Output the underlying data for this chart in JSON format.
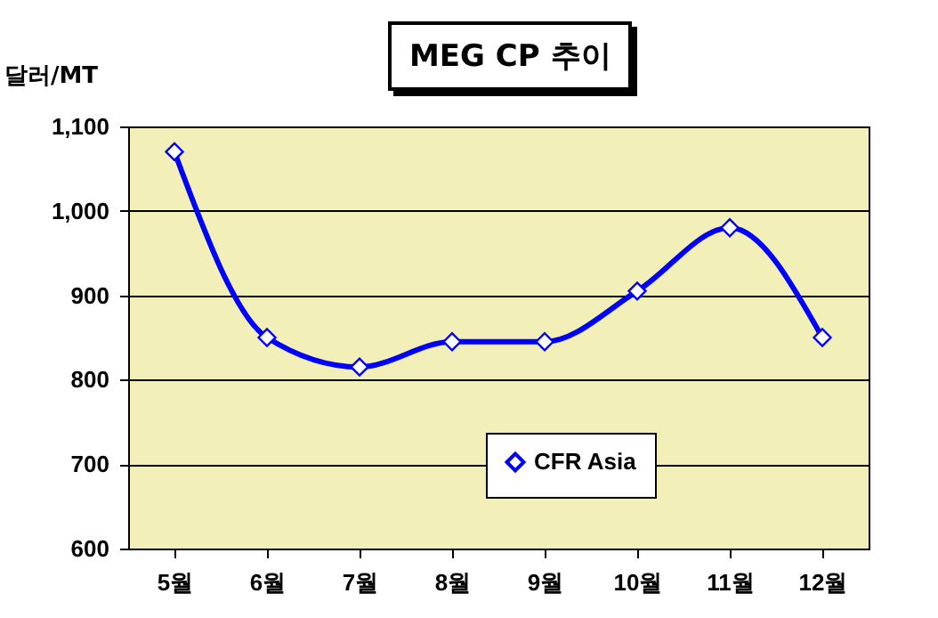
{
  "chart_data": {
    "type": "line",
    "title": "MEG CP 추이",
    "ylabel": "달러/MT",
    "categories": [
      "5월",
      "6월",
      "7월",
      "8월",
      "9월",
      "10월",
      "11월",
      "12월"
    ],
    "series": [
      {
        "name": "CFR Asia",
        "color": "#0000ff",
        "values": [
          1070,
          850,
          815,
          845,
          845,
          905,
          980,
          850
        ]
      }
    ],
    "ylim": [
      600,
      1100
    ],
    "yticks": [
      600,
      700,
      800,
      900,
      {
        "value": 1000,
        "label": "1,000"
      },
      {
        "value": 1100,
        "label": "1,100"
      }
    ],
    "grid": "y",
    "legend": "bottom right",
    "marker": "diamond",
    "line_style": "solid"
  }
}
